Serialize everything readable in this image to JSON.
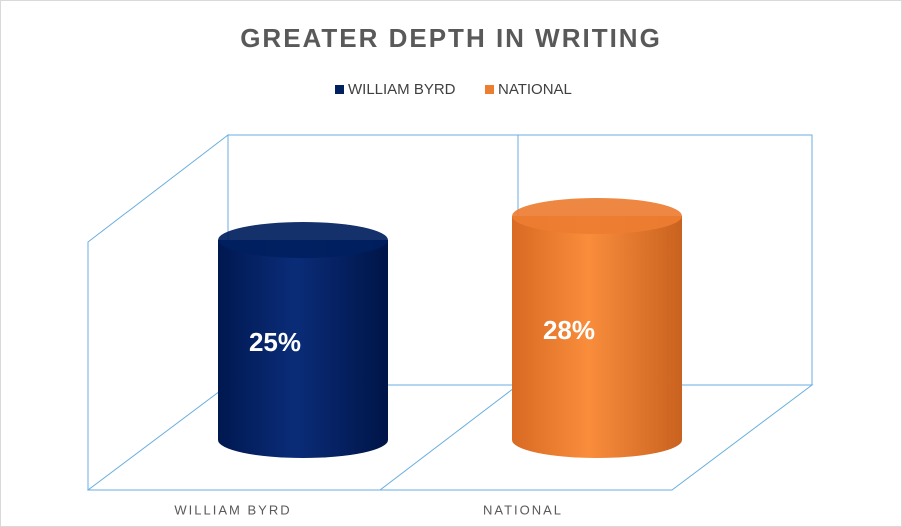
{
  "chart_data": {
    "type": "cylinder",
    "title": "GREATER  DEPTH IN WRITING",
    "categories": [
      "WILLIAM BYRD",
      "NATIONAL"
    ],
    "values": [
      25,
      28
    ],
    "value_labels": [
      "25%",
      "28%"
    ],
    "colors": [
      "#002060",
      "#ED7D31"
    ],
    "legend": "top"
  }
}
